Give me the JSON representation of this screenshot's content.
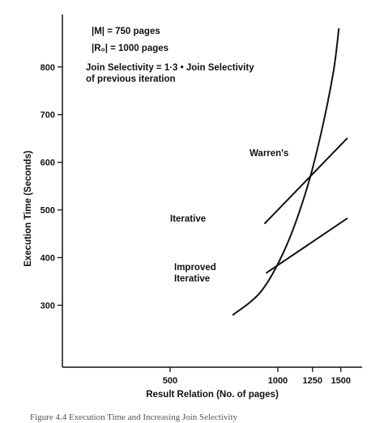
{
  "chart_data": {
    "type": "line",
    "xlabel": "Result Relation (No. of pages)",
    "ylabel": "Execution Time (Seconds)",
    "x_ticks": [
      500,
      1000,
      1250,
      1500
    ],
    "y_ticks": [
      300,
      400,
      500,
      600,
      700,
      800
    ],
    "xlim": [
      250,
      1720
    ],
    "ylim": [
      170,
      910
    ],
    "grid": false,
    "annotations": [
      "|M| = 750 pages",
      "|R₀| = 1000 pages",
      "Join Selectivity = 1·3 • Join Selectivity",
      "of previous iteration"
    ],
    "series": [
      {
        "name": "Warren's",
        "x": [
          750,
          900,
          1050,
          1200,
          1320,
          1430,
          1480
        ],
        "y": [
          280,
          330,
          420,
          540,
          660,
          790,
          880
        ]
      },
      {
        "name": "Iterative",
        "x": [
          920,
          1560
        ],
        "y": [
          472,
          650
        ]
      },
      {
        "name": "Improved Iterative",
        "x": [
          930,
          1560
        ],
        "y": [
          368,
          482
        ]
      }
    ],
    "caption": "Figure 4.4 Execution Time and Increasing Join Selectivity"
  }
}
